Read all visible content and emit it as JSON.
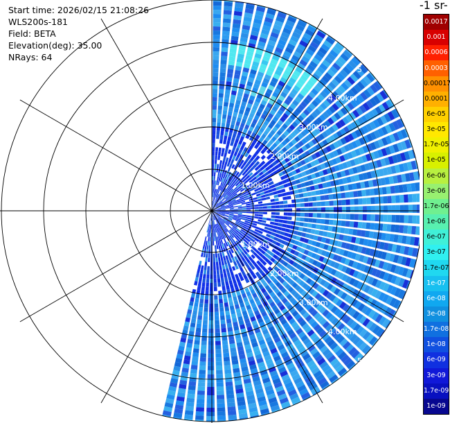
{
  "info": {
    "start_time": "Start time: 2026/02/15 21:08:26",
    "instrument": "WLS200s-181",
    "field": "Field: BETA",
    "elevation": "Elevation(deg): 35.00",
    "nrays": "NRays: 64"
  },
  "colorbar": {
    "unit_title": "-1 sr-",
    "labels": [
      "0.0017",
      "0.001",
      "0.0006",
      "0.0003",
      "0.00017",
      "0.0001",
      "6e-05",
      "3e-05",
      "1.7e-05",
      "1e-05",
      "6e-06",
      "3e-06",
      "1.7e-06",
      "1e-06",
      "6e-07",
      "3e-07",
      "1.7e-07",
      "1e-07",
      "6e-08",
      "3e-08",
      "1.7e-08",
      "1e-08",
      "6e-09",
      "3e-09",
      "1.7e-09",
      "1e-09"
    ],
    "colors": [
      "#a00000",
      "#d80000",
      "#ff2000",
      "#ff6000",
      "#ff9000",
      "#ffb000",
      "#ffd000",
      "#ffe800",
      "#f0f000",
      "#d8f000",
      "#b8f040",
      "#98f070",
      "#70f090",
      "#58f0b0",
      "#40f0d8",
      "#30f0f0",
      "#20d8f0",
      "#18c0f0",
      "#10a8f0",
      "#1090e0",
      "#1070e0",
      "#1050e0",
      "#1030e0",
      "#1018d8",
      "#0810c0",
      "#080890"
    ]
  },
  "chart_data": {
    "type": "heatmap",
    "projection": "polar (PPI scan)",
    "field": "BETA",
    "elevation_deg": 35.0,
    "nrays": 64,
    "azimuth_coverage_deg": [
      0,
      194
    ],
    "range_ring_labels": [
      "1.00km",
      "2.00km",
      "3.00km",
      "4.00km",
      "5"
    ],
    "color_scale_labels": [
      "0.0017",
      "0.001",
      "0.0006",
      "0.0003",
      "0.00017",
      "0.0001",
      "6e-05",
      "3e-05",
      "1.7e-05",
      "1e-05",
      "6e-06",
      "3e-06",
      "1.7e-06",
      "1e-06",
      "6e-07",
      "3e-07",
      "1.7e-07",
      "1e-07",
      "6e-08",
      "3e-08",
      "1.7e-08",
      "1e-08",
      "6e-09",
      "3e-09",
      "1.7e-09",
      "1e-09"
    ],
    "dominant_value_range": [
      "1e-08",
      "1e-07"
    ]
  }
}
